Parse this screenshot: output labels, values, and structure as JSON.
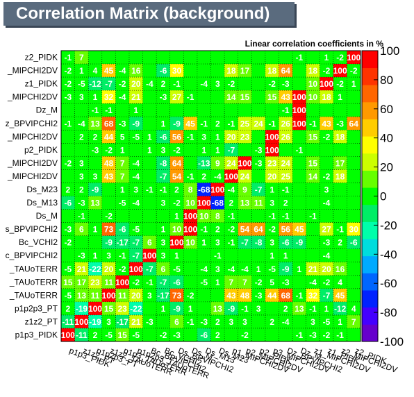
{
  "title": "Correlation Matrix (background)",
  "chart_data": {
    "type": "heatmap",
    "subtitle": "Linear correlation coefficients in %",
    "variables": [
      "p1p3_PIDK",
      "z1z2_PT",
      "p1p2p3_PT",
      "z1z2_TAUoTERR",
      "p1p3_TAUoTERR",
      "p1p2p3_TAUoTERR",
      "Bc_BPVIPCHI2",
      "Bc_VCHI2",
      "Ds_BPVIPCHI2",
      "Ds_M",
      "Ds_M13",
      "Ds_M23",
      "p1_MIPCHI2DV",
      "p2_MIPCHI2DV",
      "p2_PIDK",
      "p3_MIPCHI2DV",
      "Dz_BPVIPCHI2",
      "Dz_M",
      "z1_MIPCHI2DV",
      "z1_PIDK",
      "z2_MIPCHI2DV",
      "z2_PIDK"
    ],
    "row_labels": [
      "z2_PIDK",
      "_MIPCHI2DV",
      "z1_PIDK",
      "_MIPCHI2DV",
      "Dz_M",
      "z_BPVIPCHI2",
      "_MIPCHI2DV",
      "p2_PIDK",
      "_MIPCHI2DV",
      "_MIPCHI2DV",
      "Ds_M23",
      "Ds_M13",
      "Ds_M",
      "s_BPVIPCHI2",
      "Bc_VCHI2",
      "c_BPVIPCHI2",
      "_TAUoTERR",
      "_TAUoTERR",
      "_TAUoTERR",
      "p1p2p3_PT",
      "z1z2_PT",
      "p1p3_PIDK"
    ],
    "col_labels": [
      "p1p3_PIDK",
      "z1z2_PT",
      "p1p2p3_PT",
      "z1z2_TAUoTERR",
      "p1p3_TAUoTERR",
      "p1p2p3_TAUoTERR",
      "Bc_BPVIPCHI2",
      "Bc_VCHI2",
      "Ds_BPVIPCHI2",
      "Ds_M",
      "Ds_M13",
      "Ds_M23",
      "p1_MIPCHI2DV",
      "p2_MIPCHI2DV",
      "p2_PIDK",
      "p3_MIPCHI2DV",
      "Dz_BPVIPCHI2",
      "Dz_M",
      "z1_MIPCHI2DV",
      "z1_PIDK",
      "z2_MIPCHI2DV",
      "z2_PIDK"
    ],
    "values_top_to_bottom": [
      [
        -1,
        7,
        0,
        0,
        0,
        0,
        0,
        0,
        0,
        0,
        0,
        0,
        0,
        0,
        0,
        0,
        0,
        -1,
        0,
        1,
        -2,
        100
      ],
      [
        -2,
        1,
        4,
        45,
        -4,
        16,
        0,
        -6,
        30,
        0,
        0,
        0,
        18,
        17,
        0,
        18,
        64,
        0,
        18,
        -2,
        100,
        -2
      ],
      [
        -2,
        -5,
        -12,
        -7,
        -2,
        20,
        -4,
        2,
        -1,
        0,
        -4,
        3,
        -2,
        0,
        0,
        -2,
        -3,
        0,
        10,
        100,
        -2,
        1
      ],
      [
        -3,
        3,
        1,
        32,
        -4,
        21,
        0,
        -3,
        27,
        -1,
        0,
        0,
        14,
        15,
        0,
        15,
        43,
        100,
        10,
        18,
        1,
        0
      ],
      [
        0,
        0,
        -1,
        -1,
        0,
        1,
        0,
        0,
        0,
        0,
        0,
        0,
        0,
        0,
        0,
        0,
        -1,
        100,
        0,
        0,
        0,
        0
      ],
      [
        -1,
        -4,
        13,
        68,
        -3,
        -9,
        0,
        1,
        -9,
        45,
        -1,
        2,
        -1,
        25,
        24,
        -1,
        26,
        100,
        -1,
        43,
        -3,
        64
      ],
      [
        0,
        2,
        2,
        44,
        5,
        -5,
        1,
        -6,
        56,
        -1,
        3,
        1,
        20,
        23,
        0,
        100,
        26,
        0,
        15,
        -2,
        18,
        0
      ],
      [
        0,
        0,
        -3,
        -2,
        1,
        0,
        1,
        3,
        -2,
        0,
        1,
        1,
        -7,
        0,
        -3,
        100,
        0,
        -1,
        0,
        0,
        0,
        0
      ],
      [
        -2,
        3,
        0,
        48,
        7,
        -4,
        0,
        -8,
        64,
        0,
        -13,
        9,
        24,
        100,
        -3,
        23,
        24,
        0,
        15,
        0,
        17,
        0
      ],
      [
        0,
        3,
        3,
        43,
        7,
        -4,
        0,
        -7,
        54,
        -1,
        2,
        -4,
        100,
        24,
        0,
        20,
        25,
        0,
        14,
        -2,
        18,
        0
      ],
      [
        2,
        2,
        -9,
        0,
        1,
        3,
        -1,
        -1,
        2,
        8,
        -68,
        100,
        -4,
        9,
        -7,
        1,
        -1,
        0,
        0,
        3,
        0,
        0
      ],
      [
        -6,
        -3,
        13,
        0,
        -5,
        -4,
        0,
        3,
        -2,
        10,
        100,
        -68,
        2,
        13,
        11,
        3,
        2,
        0,
        0,
        -4,
        0,
        0
      ],
      [
        0,
        -1,
        0,
        -2,
        0,
        0,
        0,
        0,
        1,
        100,
        10,
        8,
        -1,
        0,
        0,
        -1,
        -1,
        0,
        -1,
        0,
        0,
        0
      ],
      [
        -3,
        6,
        1,
        73,
        -6,
        -5,
        0,
        1,
        10,
        100,
        -1,
        2,
        -2,
        54,
        64,
        -2,
        56,
        45,
        0,
        27,
        -1,
        30
      ],
      [
        -2,
        0,
        0,
        -9,
        -17,
        -7,
        6,
        3,
        100,
        10,
        1,
        3,
        -1,
        -7,
        -8,
        3,
        -6,
        -9,
        0,
        -3,
        2,
        -6
      ],
      [
        0,
        -3,
        1,
        3,
        -1,
        -7,
        100,
        3,
        1,
        0,
        0,
        -1,
        0,
        0,
        0,
        1,
        1,
        0,
        0,
        -4,
        0,
        0
      ],
      [
        -5,
        21,
        -22,
        20,
        -2,
        100,
        -7,
        6,
        -5,
        0,
        -4,
        3,
        -4,
        -4,
        1,
        -5,
        -9,
        1,
        21,
        20,
        16,
        0
      ],
      [
        15,
        17,
        23,
        11,
        100,
        -2,
        -1,
        -7,
        -6,
        0,
        -5,
        1,
        7,
        7,
        -2,
        5,
        -3,
        0,
        -4,
        -2,
        4,
        0
      ],
      [
        -5,
        13,
        11,
        100,
        11,
        20,
        3,
        -17,
        73,
        -2,
        0,
        0,
        43,
        48,
        -3,
        44,
        68,
        -1,
        32,
        -7,
        45,
        0
      ],
      [
        2,
        -19,
        100,
        15,
        23,
        -22,
        0,
        1,
        -9,
        1,
        0,
        13,
        -9,
        -1,
        3,
        0,
        2,
        13,
        -1,
        1,
        -12,
        4
      ],
      [
        -11,
        100,
        -19,
        3,
        -17,
        21,
        -3,
        0,
        6,
        -1,
        -3,
        2,
        3,
        3,
        0,
        2,
        -4,
        0,
        3,
        -5,
        1,
        7
      ],
      [
        100,
        -11,
        2,
        -5,
        15,
        -5,
        0,
        -2,
        -3,
        0,
        -6,
        2,
        0,
        -2,
        0,
        0,
        0,
        -1,
        -3,
        -2,
        -1,
        0
      ]
    ],
    "z_range": [
      -100,
      100
    ],
    "z_ticks": [
      100,
      80,
      60,
      40,
      20,
      0,
      -20,
      -40,
      -60,
      -80,
      -100
    ],
    "palette": [
      "#6600cc",
      "#4400ff",
      "#0022ff",
      "#0066ff",
      "#00aaff",
      "#00dddd",
      "#00ffaa",
      "#00ee66",
      "#00ff00",
      "#66ff00",
      "#ccff00",
      "#ffff00",
      "#ffcc00",
      "#ff9900",
      "#ff6600",
      "#ff3300",
      "#ff0000"
    ]
  }
}
